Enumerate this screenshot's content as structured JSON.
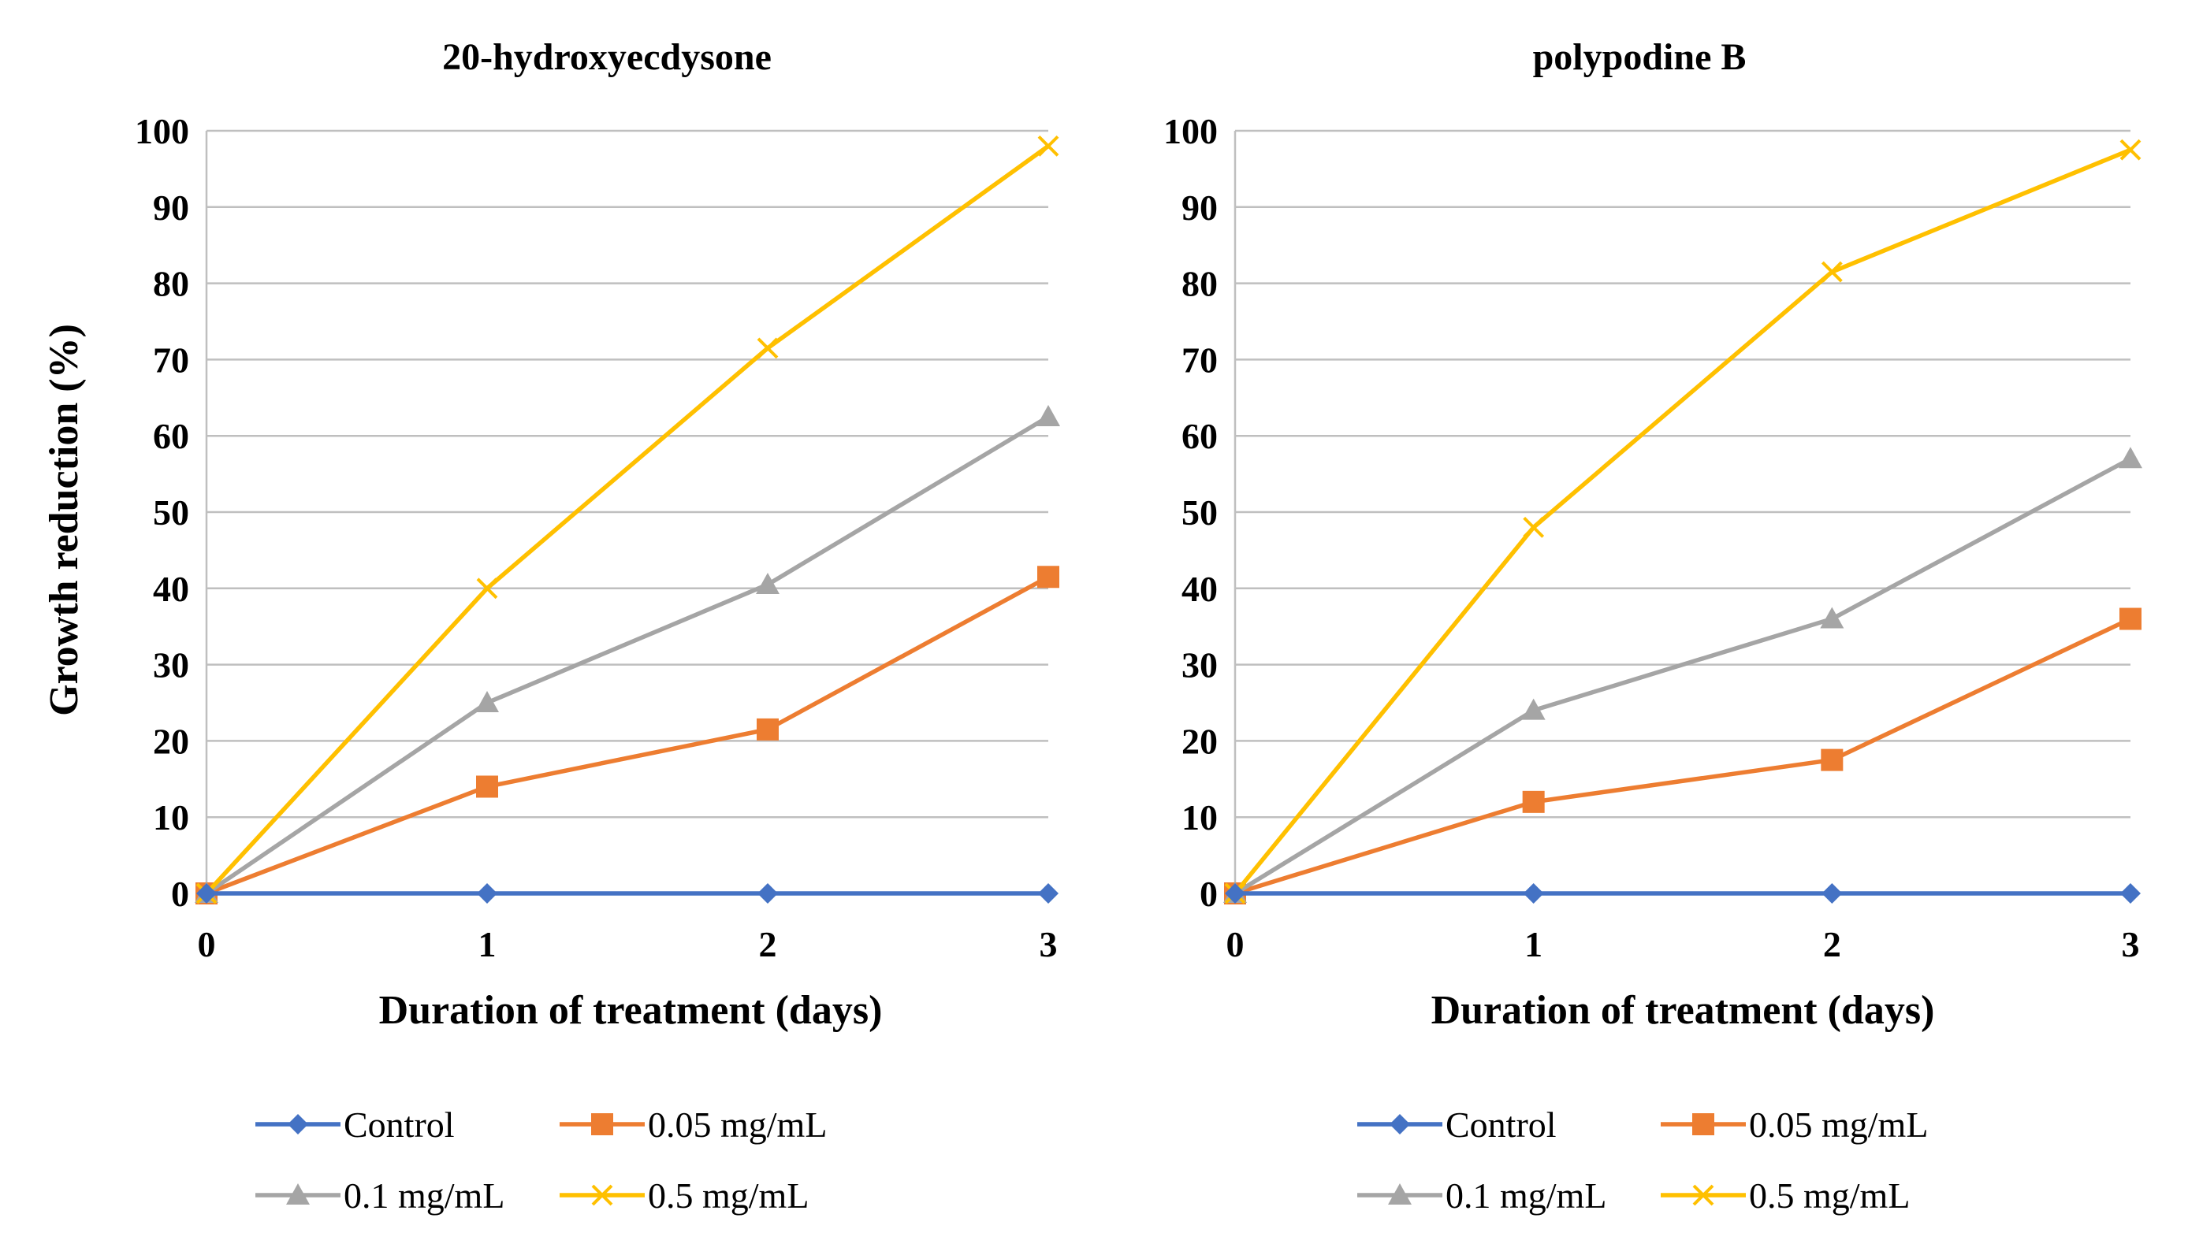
{
  "chart_data": [
    {
      "type": "line",
      "title": "20-hydroxyecdysone",
      "xlabel": "Duration of treatment (days)",
      "ylabel": "Growth reduction (%)",
      "x": [
        0,
        1,
        2,
        3
      ],
      "xlim": [
        0,
        3
      ],
      "ylim": [
        0,
        100
      ],
      "yticks": [
        0,
        10,
        20,
        30,
        40,
        50,
        60,
        70,
        80,
        90,
        100
      ],
      "grid": "horizontal",
      "legend_position": "bottom",
      "series": [
        {
          "name": "Control",
          "marker": "diamond",
          "color": "#4472C4",
          "values": [
            0,
            0,
            0,
            0
          ]
        },
        {
          "name": "0.05 mg/mL",
          "marker": "square",
          "color": "#ED7D31",
          "values": [
            0,
            14,
            21.5,
            41.5
          ]
        },
        {
          "name": "0.1 mg/mL",
          "marker": "triangle",
          "color": "#A5A5A5",
          "values": [
            0,
            25,
            40.5,
            62.5
          ]
        },
        {
          "name": "0.5 mg/mL",
          "marker": "x",
          "color": "#FFC000",
          "values": [
            0,
            40,
            71.5,
            98
          ]
        }
      ]
    },
    {
      "type": "line",
      "title": "polypodine B",
      "xlabel": "Duration of treatment (days)",
      "ylabel": "",
      "x": [
        0,
        1,
        2,
        3
      ],
      "xlim": [
        0,
        3
      ],
      "ylim": [
        0,
        100
      ],
      "yticks": [
        0,
        10,
        20,
        30,
        40,
        50,
        60,
        70,
        80,
        90,
        100
      ],
      "grid": "horizontal",
      "legend_position": "bottom",
      "series": [
        {
          "name": "Control",
          "marker": "diamond",
          "color": "#4472C4",
          "values": [
            0,
            0,
            0,
            0
          ]
        },
        {
          "name": "0.05 mg/mL",
          "marker": "square",
          "color": "#ED7D31",
          "values": [
            0,
            12,
            17.5,
            36
          ]
        },
        {
          "name": "0.1 mg/mL",
          "marker": "triangle",
          "color": "#A5A5A5",
          "values": [
            0,
            24,
            36,
            57
          ]
        },
        {
          "name": "0.5 mg/mL",
          "marker": "x",
          "color": "#FFC000",
          "values": [
            0,
            48,
            81.5,
            97.5
          ]
        }
      ]
    }
  ]
}
